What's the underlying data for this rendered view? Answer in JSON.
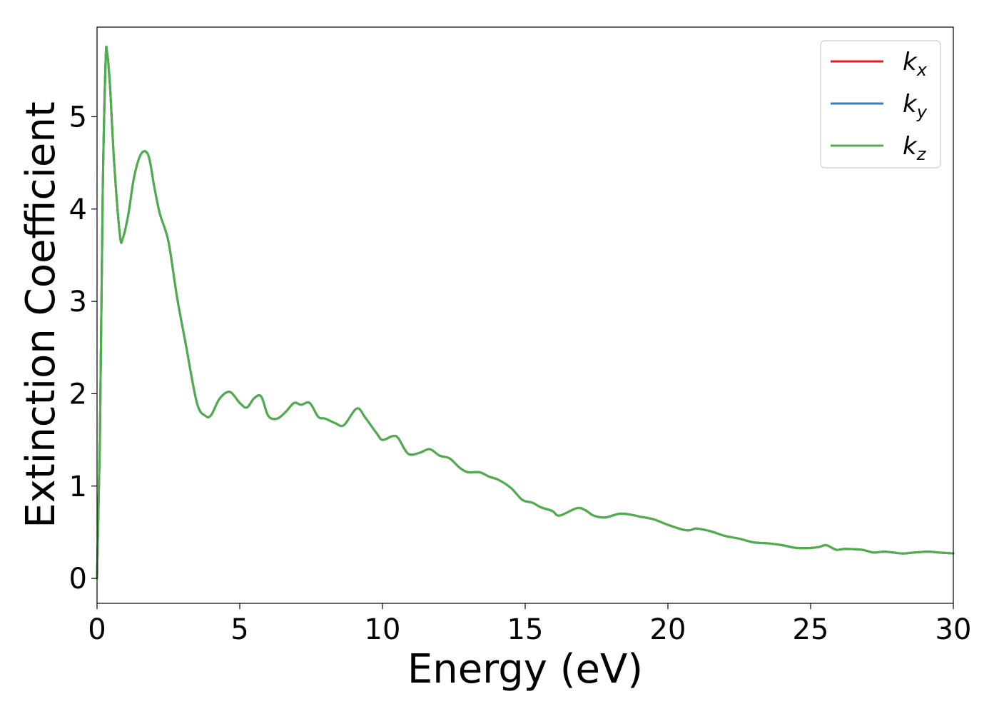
{
  "chart_data": {
    "type": "line",
    "title": "",
    "xlabel": "Energy (eV)",
    "ylabel": "Extinction Coefficient",
    "xlim": [
      0,
      30
    ],
    "ylim": [
      -0.27,
      5.97
    ],
    "xticks": [
      0,
      5,
      10,
      15,
      20,
      25,
      30
    ],
    "yticks": [
      0,
      1,
      2,
      3,
      4,
      5
    ],
    "grid": false,
    "legend_position": "top-right",
    "series": [
      {
        "name": "kx",
        "legend_base": "k",
        "legend_sub": "x",
        "color": "#e41a1c",
        "x": [
          0,
          0.1,
          0.2,
          0.3,
          0.35,
          0.45,
          0.6,
          0.8,
          0.9,
          1.1,
          1.3,
          1.55,
          1.8,
          2.0,
          2.2,
          2.5,
          2.8,
          3.1,
          3.5,
          3.8,
          4.0,
          4.3,
          4.65,
          5.0,
          5.25,
          5.5,
          5.75,
          6.0,
          6.3,
          6.6,
          6.9,
          7.15,
          7.45,
          7.75,
          8.0,
          8.35,
          8.65,
          9.1,
          9.4,
          9.8,
          10.0,
          10.35,
          10.55,
          10.9,
          11.3,
          11.65,
          12.0,
          12.35,
          12.7,
          13.0,
          13.4,
          13.75,
          14.05,
          14.5,
          14.9,
          15.25,
          15.55,
          15.95,
          16.2,
          16.8,
          17.1,
          17.4,
          17.8,
          18.3,
          18.7,
          19.0,
          19.5,
          20.0,
          20.5,
          20.75,
          21.0,
          21.5,
          22.0,
          22.5,
          23.0,
          23.5,
          24.0,
          24.5,
          25.0,
          25.3,
          25.55,
          25.9,
          26.2,
          26.8,
          27.2,
          27.6,
          28.2,
          28.6,
          29.1,
          29.5,
          30.0
        ],
        "y": [
          0.0,
          1.5,
          4.2,
          5.6,
          5.7,
          5.35,
          4.5,
          3.72,
          3.68,
          3.95,
          4.35,
          4.6,
          4.58,
          4.25,
          3.95,
          3.65,
          3.05,
          2.55,
          1.9,
          1.76,
          1.77,
          1.95,
          2.02,
          1.9,
          1.85,
          1.95,
          1.97,
          1.76,
          1.73,
          1.8,
          1.9,
          1.88,
          1.9,
          1.75,
          1.73,
          1.68,
          1.66,
          1.84,
          1.74,
          1.57,
          1.5,
          1.54,
          1.52,
          1.35,
          1.36,
          1.4,
          1.33,
          1.3,
          1.2,
          1.15,
          1.15,
          1.1,
          1.07,
          0.98,
          0.85,
          0.82,
          0.77,
          0.73,
          0.68,
          0.76,
          0.74,
          0.68,
          0.66,
          0.7,
          0.69,
          0.67,
          0.64,
          0.58,
          0.53,
          0.52,
          0.54,
          0.51,
          0.46,
          0.43,
          0.39,
          0.38,
          0.36,
          0.33,
          0.33,
          0.34,
          0.36,
          0.31,
          0.32,
          0.31,
          0.28,
          0.29,
          0.27,
          0.28,
          0.29,
          0.28,
          0.27
        ]
      },
      {
        "name": "ky",
        "legend_base": "k",
        "legend_sub": "y",
        "color": "#377eb8",
        "x": [
          0,
          0.1,
          0.2,
          0.3,
          0.35,
          0.45,
          0.6,
          0.8,
          0.9,
          1.1,
          1.3,
          1.55,
          1.8,
          2.0,
          2.2,
          2.5,
          2.8,
          3.1,
          3.5,
          3.8,
          4.0,
          4.3,
          4.65,
          5.0,
          5.25,
          5.5,
          5.75,
          6.0,
          6.3,
          6.6,
          6.9,
          7.15,
          7.45,
          7.75,
          8.0,
          8.35,
          8.65,
          9.1,
          9.4,
          9.8,
          10.0,
          10.35,
          10.55,
          10.9,
          11.3,
          11.65,
          12.0,
          12.35,
          12.7,
          13.0,
          13.4,
          13.75,
          14.05,
          14.5,
          14.9,
          15.25,
          15.55,
          15.95,
          16.2,
          16.8,
          17.1,
          17.4,
          17.8,
          18.3,
          18.7,
          19.0,
          19.5,
          20.0,
          20.5,
          20.75,
          21.0,
          21.5,
          22.0,
          22.5,
          23.0,
          23.5,
          24.0,
          24.5,
          25.0,
          25.3,
          25.55,
          25.9,
          26.2,
          26.8,
          27.2,
          27.6,
          28.2,
          28.6,
          29.1,
          29.5,
          30.0
        ],
        "y": [
          0.0,
          1.5,
          4.2,
          5.6,
          5.7,
          5.35,
          4.5,
          3.72,
          3.68,
          3.95,
          4.35,
          4.6,
          4.58,
          4.25,
          3.95,
          3.65,
          3.05,
          2.55,
          1.9,
          1.76,
          1.77,
          1.95,
          2.02,
          1.9,
          1.85,
          1.95,
          1.97,
          1.76,
          1.73,
          1.8,
          1.9,
          1.88,
          1.9,
          1.75,
          1.73,
          1.68,
          1.66,
          1.84,
          1.74,
          1.57,
          1.5,
          1.54,
          1.52,
          1.35,
          1.36,
          1.4,
          1.33,
          1.3,
          1.2,
          1.15,
          1.15,
          1.1,
          1.07,
          0.98,
          0.85,
          0.82,
          0.77,
          0.73,
          0.68,
          0.76,
          0.74,
          0.68,
          0.66,
          0.7,
          0.69,
          0.67,
          0.64,
          0.58,
          0.53,
          0.52,
          0.54,
          0.51,
          0.46,
          0.43,
          0.39,
          0.38,
          0.36,
          0.33,
          0.33,
          0.34,
          0.36,
          0.31,
          0.32,
          0.31,
          0.28,
          0.29,
          0.27,
          0.28,
          0.29,
          0.28,
          0.27
        ]
      },
      {
        "name": "kz",
        "legend_base": "k",
        "legend_sub": "z",
        "color": "#4daf4a",
        "x": [
          0,
          0.1,
          0.2,
          0.3,
          0.35,
          0.45,
          0.6,
          0.8,
          0.9,
          1.1,
          1.3,
          1.55,
          1.8,
          2.0,
          2.2,
          2.5,
          2.8,
          3.1,
          3.5,
          3.8,
          4.0,
          4.3,
          4.65,
          5.0,
          5.25,
          5.5,
          5.75,
          6.0,
          6.3,
          6.6,
          6.9,
          7.15,
          7.45,
          7.75,
          8.0,
          8.35,
          8.65,
          9.1,
          9.4,
          9.8,
          10.0,
          10.35,
          10.55,
          10.9,
          11.3,
          11.65,
          12.0,
          12.35,
          12.7,
          13.0,
          13.4,
          13.75,
          14.05,
          14.5,
          14.9,
          15.25,
          15.55,
          15.95,
          16.2,
          16.8,
          17.1,
          17.4,
          17.8,
          18.3,
          18.7,
          19.0,
          19.5,
          20.0,
          20.5,
          20.75,
          21.0,
          21.5,
          22.0,
          22.5,
          23.0,
          23.5,
          24.0,
          24.5,
          25.0,
          25.3,
          25.55,
          25.9,
          26.2,
          26.8,
          27.2,
          27.6,
          28.2,
          28.6,
          29.1,
          29.5,
          30.0
        ],
        "y": [
          0.0,
          1.5,
          4.2,
          5.6,
          5.7,
          5.35,
          4.5,
          3.72,
          3.68,
          3.95,
          4.35,
          4.6,
          4.58,
          4.25,
          3.95,
          3.65,
          3.05,
          2.55,
          1.9,
          1.76,
          1.77,
          1.95,
          2.02,
          1.9,
          1.85,
          1.95,
          1.97,
          1.76,
          1.73,
          1.8,
          1.9,
          1.88,
          1.9,
          1.75,
          1.73,
          1.68,
          1.66,
          1.84,
          1.74,
          1.57,
          1.5,
          1.54,
          1.52,
          1.35,
          1.36,
          1.4,
          1.33,
          1.3,
          1.2,
          1.15,
          1.15,
          1.1,
          1.07,
          0.98,
          0.85,
          0.82,
          0.77,
          0.73,
          0.68,
          0.76,
          0.74,
          0.68,
          0.66,
          0.7,
          0.69,
          0.67,
          0.64,
          0.58,
          0.53,
          0.52,
          0.54,
          0.51,
          0.46,
          0.43,
          0.39,
          0.38,
          0.36,
          0.33,
          0.33,
          0.34,
          0.36,
          0.31,
          0.32,
          0.31,
          0.28,
          0.29,
          0.27,
          0.28,
          0.29,
          0.28,
          0.27
        ]
      }
    ]
  }
}
